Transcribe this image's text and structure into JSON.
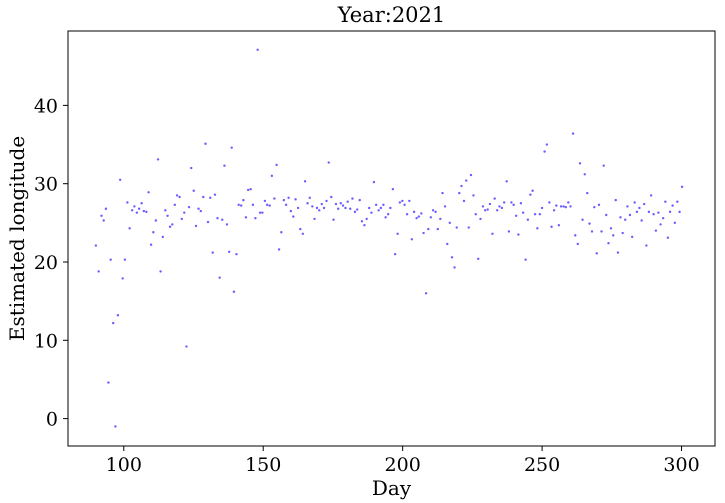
{
  "chart_data": {
    "type": "scatter",
    "title": "Year:2021",
    "xlabel": "Day",
    "ylabel": "Estimated longitude",
    "xlim": [
      80,
      312
    ],
    "ylim": [
      -3.5,
      49.5
    ],
    "xticks": [
      100,
      150,
      200,
      250,
      300
    ],
    "yticks": [
      0,
      10,
      20,
      30,
      40
    ],
    "xtick_labels": [
      "100",
      "150",
      "200",
      "250",
      "300"
    ],
    "ytick_labels": [
      "0",
      "10",
      "20",
      "30",
      "40"
    ],
    "grid": false,
    "marker_color": "#6a5cff",
    "series": [
      {
        "points": [
          [
            90,
            22.1
          ],
          [
            91,
            18.8
          ],
          [
            92,
            25.9
          ],
          [
            92.8,
            25.3
          ],
          [
            93.6,
            26.8
          ],
          [
            94.5,
            4.6
          ],
          [
            95.3,
            20.3
          ],
          [
            96.2,
            12.2
          ],
          [
            97,
            -1
          ],
          [
            97.9,
            13.2
          ],
          [
            98.7,
            30.5
          ],
          [
            99.6,
            17.9
          ],
          [
            100.4,
            20.3
          ],
          [
            101.3,
            27.6
          ],
          [
            102.1,
            24.3
          ],
          [
            103,
            26.6
          ],
          [
            103.8,
            27.1
          ],
          [
            104.7,
            26.3
          ],
          [
            105.5,
            26.8
          ],
          [
            106.4,
            27.5
          ],
          [
            107.2,
            26.5
          ],
          [
            108.1,
            26.4
          ],
          [
            108.9,
            28.9
          ],
          [
            109.8,
            22.2
          ],
          [
            110.6,
            23.8
          ],
          [
            111.5,
            25.3
          ],
          [
            112.3,
            33.1
          ],
          [
            113.2,
            18.8
          ],
          [
            114,
            23.2
          ],
          [
            114.9,
            26.6
          ],
          [
            115.7,
            25.9
          ],
          [
            116.6,
            24.5
          ],
          [
            117.4,
            24.8
          ],
          [
            118.3,
            27.3
          ],
          [
            119.1,
            28.5
          ],
          [
            120,
            28.3
          ],
          [
            120.8,
            25.5
          ],
          [
            121.7,
            26.3
          ],
          [
            122.5,
            9.2
          ],
          [
            123.4,
            27
          ],
          [
            124.2,
            32
          ],
          [
            125.1,
            29.1
          ],
          [
            125.9,
            24.6
          ],
          [
            126.8,
            26.8
          ],
          [
            127.6,
            26.5
          ],
          [
            128.5,
            28.3
          ],
          [
            129.3,
            35.1
          ],
          [
            130.2,
            25.1
          ],
          [
            131,
            28.2
          ],
          [
            131.9,
            21.2
          ],
          [
            132.7,
            28.6
          ],
          [
            133.6,
            25.6
          ],
          [
            134.4,
            18
          ],
          [
            135.3,
            25.4
          ],
          [
            136.1,
            32.3
          ],
          [
            137,
            24.8
          ],
          [
            137.8,
            21.3
          ],
          [
            138.7,
            34.6
          ],
          [
            139.5,
            16.2
          ],
          [
            140.4,
            21
          ],
          [
            141.2,
            27.3
          ],
          [
            142.1,
            27.2
          ],
          [
            142.9,
            27.9
          ],
          [
            143.8,
            25.7
          ],
          [
            144.6,
            29.2
          ],
          [
            145.5,
            29.3
          ],
          [
            146.3,
            27.3
          ],
          [
            147.2,
            25.6
          ],
          [
            148,
            47.1
          ],
          [
            148.9,
            26.3
          ],
          [
            149.7,
            26.3
          ],
          [
            150.6,
            27.8
          ],
          [
            151.4,
            27.3
          ],
          [
            152.3,
            27.2
          ],
          [
            153.1,
            31
          ],
          [
            154,
            28.1
          ],
          [
            154.8,
            32.4
          ],
          [
            155.7,
            21.6
          ],
          [
            156.5,
            23.8
          ],
          [
            157.4,
            27.9
          ],
          [
            158.2,
            27.3
          ],
          [
            159.1,
            28.2
          ],
          [
            159.9,
            26.5
          ],
          [
            160.8,
            25.8
          ],
          [
            161.6,
            28
          ],
          [
            162.5,
            26.9
          ],
          [
            163.3,
            24.2
          ],
          [
            164.2,
            23.6
          ],
          [
            165,
            30.3
          ],
          [
            165.9,
            27.5
          ],
          [
            166.7,
            28.2
          ],
          [
            167.6,
            27.1
          ],
          [
            168.4,
            25.5
          ],
          [
            169.3,
            26.9
          ],
          [
            170.1,
            26.6
          ],
          [
            171,
            27.4
          ],
          [
            171.8,
            26.9
          ],
          [
            172.7,
            27.8
          ],
          [
            173.5,
            32.7
          ],
          [
            174.4,
            28.3
          ],
          [
            175.2,
            25.4
          ],
          [
            176.1,
            27.4
          ],
          [
            176.9,
            26.8
          ],
          [
            177.8,
            27.5
          ],
          [
            178.6,
            27.2
          ],
          [
            179.5,
            26.9
          ],
          [
            180.3,
            27.7
          ],
          [
            181.2,
            26.8
          ],
          [
            182,
            28.1
          ],
          [
            182.9,
            26.4
          ],
          [
            183.7,
            26.7
          ],
          [
            184.6,
            27.9
          ],
          [
            185.4,
            25.2
          ],
          [
            186.3,
            24.7
          ],
          [
            187.1,
            25.5
          ],
          [
            188,
            26.9
          ],
          [
            188.8,
            26.3
          ],
          [
            189.7,
            30.2
          ],
          [
            190.5,
            27.3
          ],
          [
            191.4,
            26.6
          ],
          [
            192.2,
            26.9
          ],
          [
            193.1,
            27.3
          ],
          [
            193.9,
            25.7
          ],
          [
            194.8,
            26.1
          ],
          [
            195.6,
            26.9
          ],
          [
            196.5,
            29.3
          ],
          [
            197.3,
            21
          ],
          [
            198.2,
            23.6
          ],
          [
            199,
            27.6
          ],
          [
            199.9,
            27.8
          ],
          [
            200.7,
            27.3
          ],
          [
            201.6,
            26.1
          ],
          [
            202.4,
            27.8
          ],
          [
            203.3,
            22.9
          ],
          [
            204.1,
            26.4
          ],
          [
            205,
            25.6
          ],
          [
            205.8,
            25.8
          ],
          [
            206.7,
            26.2
          ],
          [
            207.5,
            23.7
          ],
          [
            208.4,
            16
          ],
          [
            209.2,
            24.2
          ],
          [
            210.1,
            25.7
          ],
          [
            210.9,
            26.6
          ],
          [
            211.8,
            26.4
          ],
          [
            212.6,
            24.2
          ],
          [
            213.5,
            25.5
          ],
          [
            214.3,
            28.8
          ],
          [
            215.2,
            27.1
          ],
          [
            216,
            22.3
          ],
          [
            216.9,
            25
          ],
          [
            217.7,
            20.6
          ],
          [
            218.6,
            19.3
          ],
          [
            219.4,
            24.4
          ],
          [
            220.3,
            28.8
          ],
          [
            221.1,
            29.7
          ],
          [
            222,
            27.8
          ],
          [
            222.8,
            30.4
          ],
          [
            223.7,
            24.4
          ],
          [
            224.5,
            31.1
          ],
          [
            225.4,
            28.5
          ],
          [
            226.2,
            26.1
          ],
          [
            227.1,
            20.4
          ],
          [
            227.9,
            25.5
          ],
          [
            228.8,
            27.1
          ],
          [
            229.6,
            26.6
          ],
          [
            230.5,
            26.7
          ],
          [
            231.3,
            27.4
          ],
          [
            232.2,
            23.6
          ],
          [
            233,
            28.1
          ],
          [
            233.9,
            26.6
          ],
          [
            234.7,
            27.1
          ],
          [
            235.6,
            26.9
          ],
          [
            236.4,
            27.6
          ],
          [
            237.3,
            30.3
          ],
          [
            238.1,
            23.9
          ],
          [
            239,
            27.6
          ],
          [
            239.8,
            27.3
          ],
          [
            240.7,
            25.9
          ],
          [
            241.5,
            23.5
          ],
          [
            242.4,
            27.5
          ],
          [
            243.2,
            26.3
          ],
          [
            244.1,
            20.3
          ],
          [
            244.9,
            25.4
          ],
          [
            245.8,
            28.6
          ],
          [
            246.6,
            29.1
          ],
          [
            247.5,
            26.1
          ],
          [
            248.3,
            24.3
          ],
          [
            249.2,
            26.1
          ],
          [
            250,
            26.9
          ],
          [
            250.9,
            34.1
          ],
          [
            251.7,
            35
          ],
          [
            252.6,
            27.6
          ],
          [
            253.4,
            24.5
          ],
          [
            254.3,
            26.6
          ],
          [
            255.1,
            27.2
          ],
          [
            256,
            24.7
          ],
          [
            256.8,
            27.1
          ],
          [
            257.7,
            27.1
          ],
          [
            258.5,
            27
          ],
          [
            259.4,
            27.6
          ],
          [
            260.2,
            27.1
          ],
          [
            261.1,
            36.4
          ],
          [
            261.9,
            23.4
          ],
          [
            262.8,
            22.3
          ],
          [
            263.6,
            32.6
          ],
          [
            264.5,
            25.4
          ],
          [
            265.3,
            31.2
          ],
          [
            266.2,
            28.8
          ],
          [
            267,
            24.9
          ],
          [
            267.9,
            23.9
          ],
          [
            268.7,
            27
          ],
          [
            269.6,
            21.1
          ],
          [
            270.4,
            27.3
          ],
          [
            271.3,
            23.9
          ],
          [
            272.1,
            32.3
          ],
          [
            273,
            26
          ],
          [
            273.8,
            22.4
          ],
          [
            274.7,
            24.3
          ],
          [
            275.5,
            23.4
          ],
          [
            276.4,
            27.9
          ],
          [
            277.2,
            21.2
          ],
          [
            278.1,
            25.7
          ],
          [
            278.9,
            23.7
          ],
          [
            279.8,
            25.4
          ],
          [
            280.6,
            27.1
          ],
          [
            281.5,
            26
          ],
          [
            282.3,
            23.2
          ],
          [
            283.2,
            27.6
          ],
          [
            284,
            26.4
          ],
          [
            284.9,
            26.9
          ],
          [
            285.7,
            25.3
          ],
          [
            286.6,
            27.4
          ],
          [
            287.4,
            22.1
          ],
          [
            288.3,
            26.4
          ],
          [
            289.1,
            28.5
          ],
          [
            290,
            26.1
          ],
          [
            290.8,
            24
          ],
          [
            291.7,
            26.3
          ],
          [
            292.5,
            24.8
          ],
          [
            293.4,
            25.6
          ],
          [
            294.2,
            27.7
          ],
          [
            295.1,
            23.1
          ],
          [
            295.9,
            26.4
          ],
          [
            296.8,
            27.2
          ],
          [
            297.6,
            25
          ],
          [
            298.5,
            27.7
          ],
          [
            299.3,
            26.4
          ],
          [
            300.2,
            29.6
          ]
        ]
      }
    ]
  }
}
